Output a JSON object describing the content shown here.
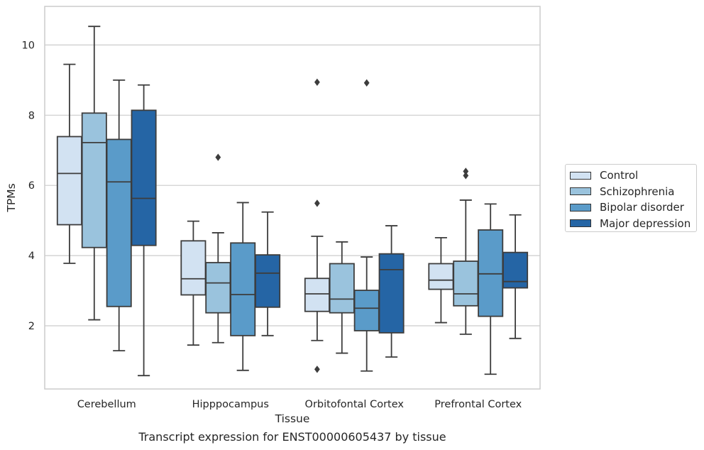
{
  "caption": "Transcript expression for ENST00000605437 by tissue",
  "chart_data": {
    "type": "box",
    "title": "",
    "xlabel": "Tissue",
    "ylabel": "TPMs",
    "ylim": [
      0.2,
      11.1
    ],
    "yticks": [
      2,
      4,
      6,
      8,
      10
    ],
    "grid": "horizontal",
    "legend_position": "right",
    "categories": [
      "Cerebellum",
      "Hipppocampus",
      "Orbitofontal Cortex",
      "Prefrontal Cortex"
    ],
    "series": [
      {
        "name": "Control",
        "color": "#d2e2f2",
        "boxes": [
          {
            "whislo": 3.78,
            "q1": 4.88,
            "med": 6.34,
            "q3": 7.39,
            "whishi": 9.45,
            "fliers": []
          },
          {
            "whislo": 1.45,
            "q1": 2.88,
            "med": 3.34,
            "q3": 4.42,
            "whishi": 4.98,
            "fliers": []
          },
          {
            "whislo": 1.58,
            "q1": 2.41,
            "med": 2.91,
            "q3": 3.35,
            "whishi": 4.55,
            "fliers": [
              5.49,
              8.94,
              0.76
            ]
          },
          {
            "whislo": 2.09,
            "q1": 3.04,
            "med": 3.3,
            "q3": 3.77,
            "whishi": 4.51,
            "fliers": []
          }
        ]
      },
      {
        "name": "Schizophrenia",
        "color": "#9ac3dd",
        "boxes": [
          {
            "whislo": 2.17,
            "q1": 4.23,
            "med": 7.22,
            "q3": 8.06,
            "whishi": 10.53,
            "fliers": []
          },
          {
            "whislo": 1.52,
            "q1": 2.37,
            "med": 3.22,
            "q3": 3.8,
            "whishi": 4.65,
            "fliers": [
              6.8
            ]
          },
          {
            "whislo": 1.22,
            "q1": 2.37,
            "med": 2.76,
            "q3": 3.77,
            "whishi": 4.39,
            "fliers": []
          },
          {
            "whislo": 1.76,
            "q1": 2.57,
            "med": 2.91,
            "q3": 3.84,
            "whishi": 5.58,
            "fliers": [
              6.28,
              6.4
            ]
          }
        ]
      },
      {
        "name": "Bipolar disorder",
        "color": "#5a9bc9",
        "boxes": [
          {
            "whislo": 1.29,
            "q1": 2.55,
            "med": 6.1,
            "q3": 7.31,
            "whishi": 9.0,
            "fliers": []
          },
          {
            "whislo": 0.73,
            "q1": 1.72,
            "med": 2.89,
            "q3": 4.36,
            "whishi": 5.51,
            "fliers": []
          },
          {
            "whislo": 0.71,
            "q1": 1.86,
            "med": 2.5,
            "q3": 3.01,
            "whishi": 3.96,
            "fliers": [
              8.92
            ]
          },
          {
            "whislo": 0.62,
            "q1": 2.27,
            "med": 3.48,
            "q3": 4.73,
            "whishi": 5.47,
            "fliers": []
          }
        ]
      },
      {
        "name": "Major depression",
        "color": "#2565a5",
        "boxes": [
          {
            "whislo": 0.58,
            "q1": 4.29,
            "med": 5.63,
            "q3": 8.14,
            "whishi": 8.86,
            "fliers": []
          },
          {
            "whislo": 1.72,
            "q1": 2.53,
            "med": 3.5,
            "q3": 4.02,
            "whishi": 5.24,
            "fliers": []
          },
          {
            "whislo": 1.11,
            "q1": 1.8,
            "med": 3.6,
            "q3": 4.05,
            "whishi": 4.85,
            "fliers": []
          },
          {
            "whislo": 1.64,
            "q1": 3.08,
            "med": 3.26,
            "q3": 4.09,
            "whishi": 5.16,
            "fliers": []
          }
        ]
      }
    ]
  }
}
